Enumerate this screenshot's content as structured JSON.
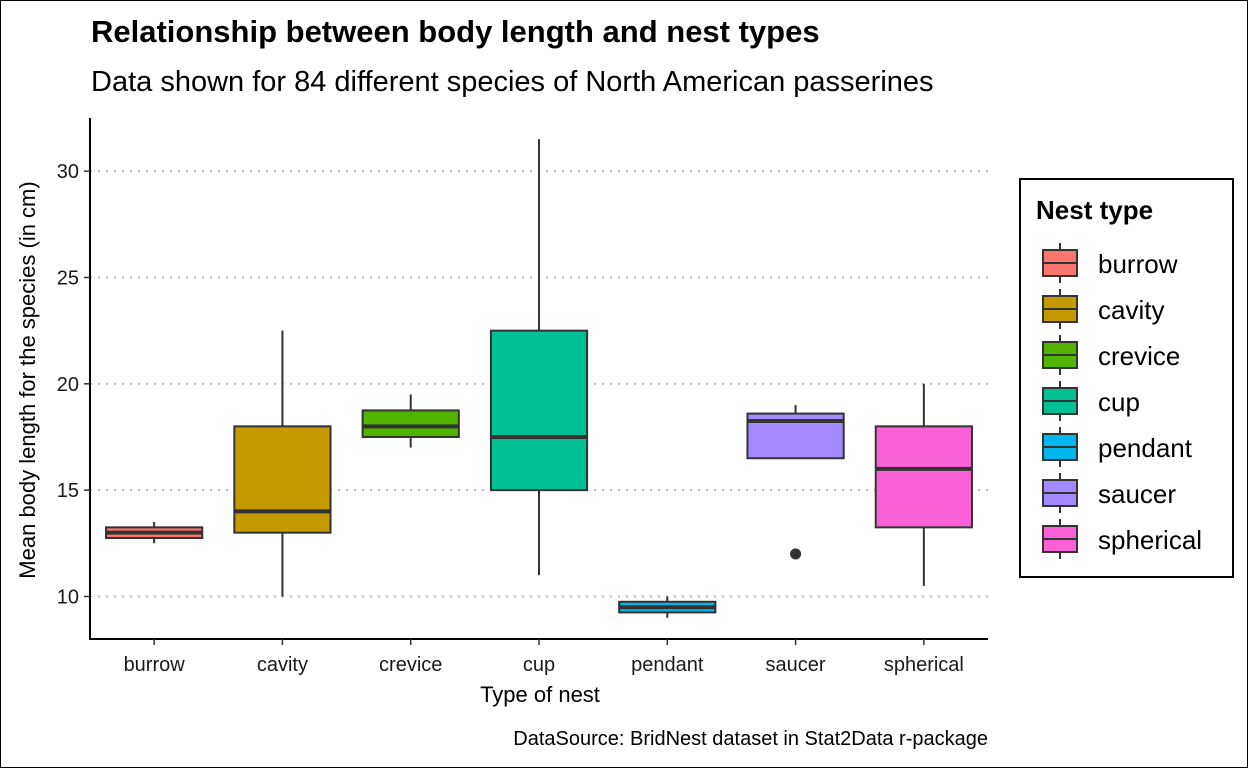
{
  "chart_data": {
    "type": "boxplot",
    "title": "Relationship between body length and nest types",
    "subtitle": "Data shown for 84 different species of North American passerines",
    "xlabel": "Type of nest",
    "ylabel": "Mean body length for the species (in cm)",
    "caption": "DataSource: BridNest dataset in Stat2Data r-package",
    "ylim": [
      8,
      32.5
    ],
    "yticks": [
      10,
      15,
      20,
      25,
      30
    ],
    "grid": "horizontal dotted",
    "legend": {
      "title": "Nest type",
      "position": "right"
    },
    "categories": [
      "burrow",
      "cavity",
      "crevice",
      "cup",
      "pendant",
      "saucer",
      "spherical"
    ],
    "boxes": [
      {
        "category": "burrow",
        "color": "#F8766D",
        "whisker_low": 12.5,
        "q1": 12.75,
        "median": 13.0,
        "q3": 13.25,
        "whisker_high": 13.5,
        "outliers": []
      },
      {
        "category": "cavity",
        "color": "#C49A00",
        "whisker_low": 10.0,
        "q1": 13.0,
        "median": 14.0,
        "q3": 18.0,
        "whisker_high": 22.5,
        "outliers": []
      },
      {
        "category": "crevice",
        "color": "#53B400",
        "whisker_low": 17.0,
        "q1": 17.5,
        "median": 18.0,
        "q3": 18.75,
        "whisker_high": 19.5,
        "outliers": []
      },
      {
        "category": "cup",
        "color": "#00C094",
        "whisker_low": 11.0,
        "q1": 15.0,
        "median": 17.5,
        "q3": 22.5,
        "whisker_high": 31.5,
        "outliers": []
      },
      {
        "category": "pendant",
        "color": "#00B6EB",
        "whisker_low": 9.0,
        "q1": 9.25,
        "median": 9.5,
        "q3": 9.75,
        "whisker_high": 10.0,
        "outliers": []
      },
      {
        "category": "saucer",
        "color": "#A58AFF",
        "whisker_low": 16.5,
        "q1": 16.5,
        "median": 18.25,
        "q3": 18.6,
        "whisker_high": 19.0,
        "outliers": [
          12.0
        ]
      },
      {
        "category": "spherical",
        "color": "#FB61D7",
        "whisker_low": 10.5,
        "q1": 13.25,
        "median": 16.0,
        "q3": 18.0,
        "whisker_high": 20.0,
        "outliers": []
      }
    ]
  }
}
